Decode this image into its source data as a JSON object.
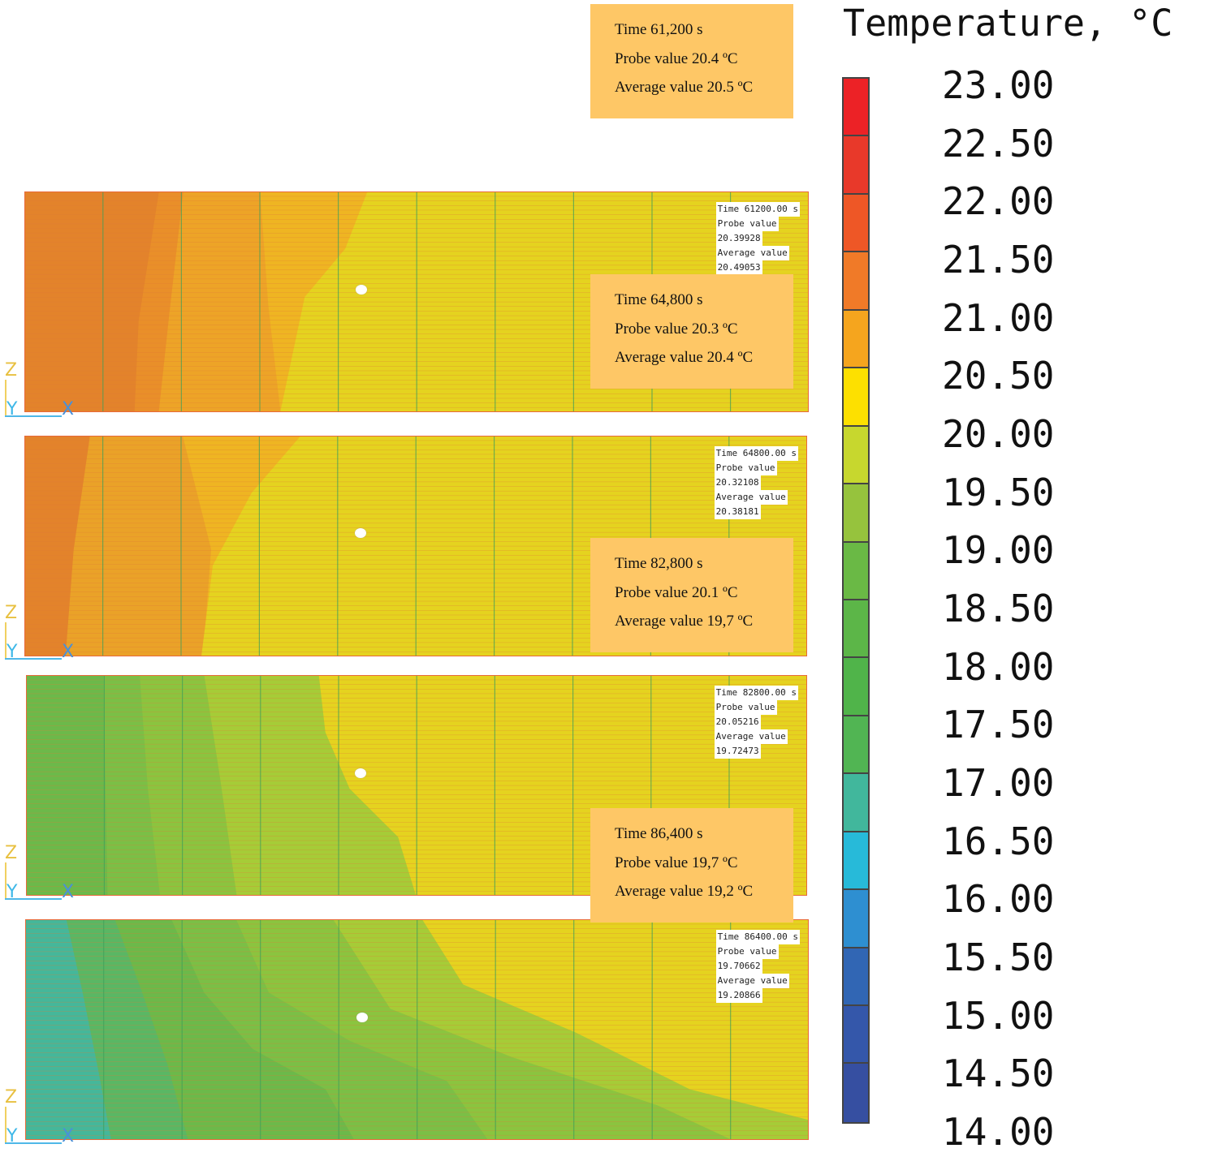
{
  "legend": {
    "title": "Temperature, °C",
    "ticks": [
      "23.00",
      "22.50",
      "22.00",
      "21.50",
      "21.00",
      "20.50",
      "20.00",
      "19.50",
      "19.00",
      "18.50",
      "18.00",
      "17.50",
      "17.00",
      "16.50",
      "16.00",
      "15.50",
      "15.00",
      "14.50",
      "14.00"
    ],
    "colors": [
      "#ec2226",
      "#e8392a",
      "#ee5726",
      "#f07a28",
      "#f5a51e",
      "#fde000",
      "#c7d72e",
      "#96c33d",
      "#6ab945",
      "#5cb648",
      "#50b44a",
      "#51b553",
      "#41b79c",
      "#27bad9",
      "#2e8fd1",
      "#3166b4",
      "#3457aa",
      "#364fa1"
    ]
  },
  "panels": [
    {
      "readout": {
        "time": "Time 61200.00 s",
        "probe_label": "Probe value",
        "probe": "20.39928",
        "avg_label": "Average value",
        "avg": "20.49053"
      },
      "bands": [
        "#e3832b",
        "#e98f29",
        "#eda427",
        "#efb522",
        "#e5d31f"
      ]
    },
    {
      "readout": {
        "time": "Time 64800.00 s",
        "probe_label": "Probe value",
        "probe": "20.32108",
        "avg_label": "Average value",
        "avg": "20.38181"
      },
      "bands": [
        "#e3832b",
        "#eaa228",
        "#efb522",
        "#e5d31f"
      ]
    },
    {
      "readout": {
        "time": "Time 82800.00 s",
        "probe_label": "Probe value",
        "probe": "20.05216",
        "avg_label": "Average value",
        "avg": "19.72473"
      },
      "bands": [
        "#6cb94a",
        "#7bbf46",
        "#8bc43f",
        "#a6cc37",
        "#e5d31f"
      ]
    },
    {
      "readout": {
        "time": "Time 86400.00 s",
        "probe_label": "Probe value",
        "probe": "19.70662",
        "avg_label": "Average value",
        "avg": "19.20866"
      },
      "bands": [
        "#45b79a",
        "#5ab764",
        "#6cb94a",
        "#7bbf46",
        "#8bc43f",
        "#a6cc37",
        "#e5d31f"
      ]
    }
  ],
  "axes": {
    "z": "Z",
    "y": "Y",
    "x": "X"
  },
  "callouts": [
    {
      "time": "Time 61,200 s",
      "probe": "Probe value 20.4 ºC",
      "avg": "Average value 20.5 ºC"
    },
    {
      "time": "Time 64,800 s",
      "probe": "Probe value 20.3 ºC",
      "avg": "Average value 20.4 ºC"
    },
    {
      "time": "Time 82,800 s",
      "probe": "Probe value 20.1 ºC",
      "avg": "Average value 19,7 ºC"
    },
    {
      "time": "Time 86,400 s",
      "probe": "Probe value 19,7 ºC",
      "avg": "Average value 19,2 ºC"
    }
  ]
}
